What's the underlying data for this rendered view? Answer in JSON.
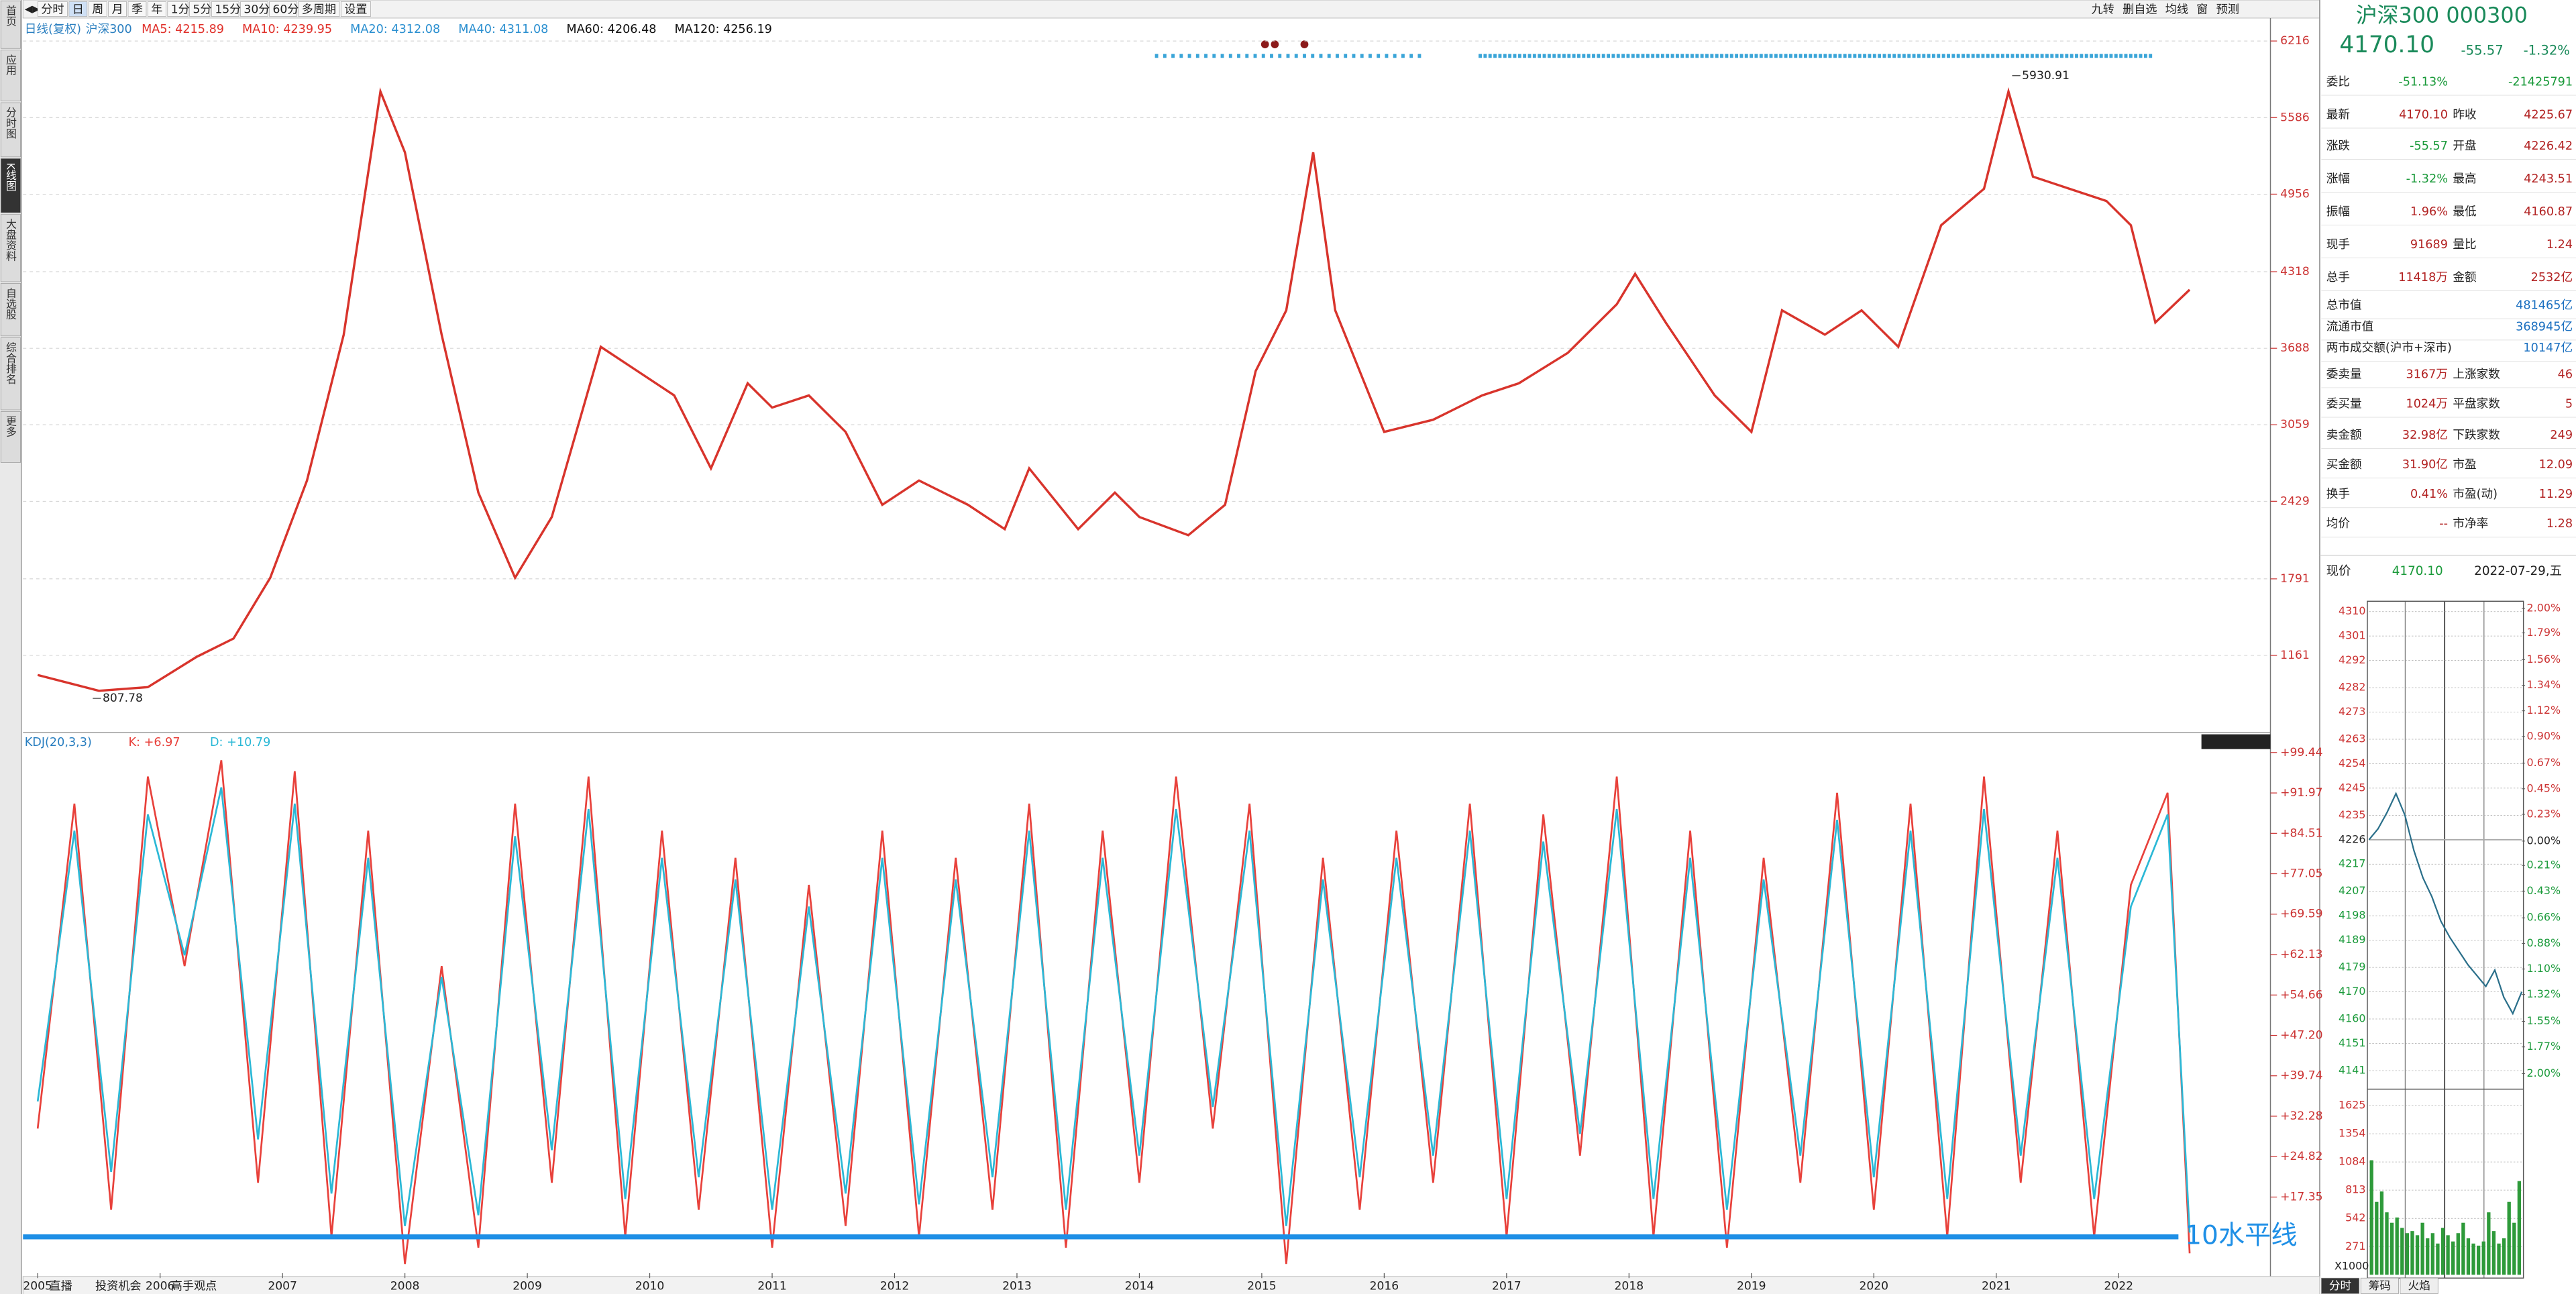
{
  "toolbar": {
    "left": [
      "分时",
      "日",
      "周",
      "月",
      "季",
      "年",
      "1分",
      "5分",
      "15分",
      "30分",
      "60分",
      "多周期",
      "设置"
    ],
    "right": [
      "九转",
      "删自选",
      "均线",
      "窗",
      "预测"
    ]
  },
  "sidebar": [
    "首页",
    "应用",
    "分时图",
    "K线图",
    "大盘资料",
    "自选股",
    "综合排名",
    "更多"
  ],
  "footer": [
    "直播",
    "投资机会",
    "高手观点"
  ],
  "chart_data": [
    {
      "type": "line",
      "title": "日线(复权)",
      "indicators": [
        {
          "label": "MA5: 4215.89",
          "color": "#e0302a"
        },
        {
          "label": "MA10: 4239.95",
          "color": "#e0302a"
        },
        {
          "label": "MA20: 4312.08",
          "color": "#2a8fd0"
        },
        {
          "label": "MA40: 4311.08",
          "color": "#2a8fd0"
        },
        {
          "label": "MA60: 4206.48",
          "color": "#111111"
        },
        {
          "label": "MA120: 4256.19",
          "color": "#111111"
        }
      ],
      "x": [
        2005.0,
        2005.5,
        2005.9,
        2006.3,
        2006.6,
        2006.9,
        2007.2,
        2007.5,
        2007.8,
        2008.0,
        2008.3,
        2008.6,
        2008.9,
        2009.2,
        2009.6,
        2009.9,
        2010.2,
        2010.5,
        2010.8,
        2011.0,
        2011.3,
        2011.6,
        2011.9,
        2012.2,
        2012.6,
        2012.9,
        2013.1,
        2013.5,
        2013.8,
        2014.0,
        2014.4,
        2014.7,
        2014.95,
        2015.2,
        2015.42,
        2015.6,
        2015.8,
        2016.0,
        2016.4,
        2016.8,
        2017.1,
        2017.5,
        2017.9,
        2018.05,
        2018.3,
        2018.7,
        2019.0,
        2019.25,
        2019.6,
        2019.9,
        2020.2,
        2020.55,
        2020.9,
        2021.1,
        2021.3,
        2021.6,
        2021.9,
        2022.1,
        2022.3,
        2022.58
      ],
      "series": [
        {
          "name": "沪深300",
          "color": "#d8342c",
          "values": [
            1000,
            870,
            900,
            1150,
            1300,
            1800,
            2600,
            3800,
            5800,
            5300,
            3800,
            2500,
            1800,
            2300,
            3700,
            3500,
            3300,
            2700,
            3400,
            3200,
            3300,
            3000,
            2400,
            2600,
            2400,
            2200,
            2700,
            2200,
            2500,
            2300,
            2150,
            2400,
            3500,
            4000,
            5300,
            4000,
            3500,
            3000,
            3100,
            3300,
            3400,
            3650,
            4050,
            4300,
            3900,
            3300,
            3000,
            4000,
            3800,
            4000,
            3700,
            4700,
            5000,
            5800,
            5100,
            5000,
            4900,
            4700,
            3900,
            4170
          ]
        }
      ],
      "annotations": [
        {
          "label": "5930.91",
          "x": 2021.13,
          "y": 5930.91
        },
        {
          "label": "807.78",
          "x": 2005.45,
          "y": 807.78
        }
      ],
      "xlim": [
        2004.88,
        2023.24
      ],
      "ylim": [
        539,
        6256
      ],
      "yticks": [
        6216,
        5586,
        4956,
        4318,
        3688,
        3059,
        2429,
        1791,
        1161
      ],
      "grid": true
    },
    {
      "type": "line",
      "title": "KDJ(20,3,3)",
      "x": [
        2005.0,
        2005.3,
        2005.6,
        2005.9,
        2006.2,
        2006.5,
        2006.8,
        2007.1,
        2007.4,
        2007.7,
        2008.0,
        2008.3,
        2008.6,
        2008.9,
        2009.2,
        2009.5,
        2009.8,
        2010.1,
        2010.4,
        2010.7,
        2011.0,
        2011.3,
        2011.6,
        2011.9,
        2012.2,
        2012.5,
        2012.8,
        2013.1,
        2013.4,
        2013.7,
        2014.0,
        2014.3,
        2014.6,
        2014.9,
        2015.2,
        2015.5,
        2015.8,
        2016.1,
        2016.4,
        2016.7,
        2017.0,
        2017.3,
        2017.6,
        2017.9,
        2018.2,
        2018.5,
        2018.8,
        2019.1,
        2019.4,
        2019.7,
        2020.0,
        2020.3,
        2020.6,
        2020.9,
        2021.2,
        2021.5,
        2021.8,
        2022.1,
        2022.4,
        2022.58
      ],
      "series": [
        {
          "name": "K: +6.97",
          "color": "#e8413b",
          "values": [
            30,
            90,
            15,
            95,
            60,
            98,
            20,
            96,
            10,
            85,
            5,
            60,
            8,
            90,
            20,
            95,
            10,
            85,
            15,
            80,
            8,
            75,
            12,
            85,
            10,
            80,
            15,
            90,
            8,
            85,
            20,
            95,
            30,
            90,
            5,
            80,
            15,
            85,
            20,
            90,
            10,
            88,
            25,
            95,
            10,
            85,
            8,
            80,
            20,
            92,
            15,
            90,
            10,
            95,
            20,
            85,
            10,
            75,
            92,
            6.97
          ]
        },
        {
          "name": "D: +10.79",
          "color": "#2bb8d6",
          "values": [
            35,
            85,
            22,
            88,
            62,
            93,
            28,
            90,
            18,
            80,
            12,
            58,
            14,
            84,
            26,
            89,
            17,
            80,
            21,
            76,
            15,
            71,
            18,
            80,
            16,
            76,
            21,
            85,
            15,
            80,
            25,
            89,
            34,
            85,
            12,
            76,
            21,
            80,
            25,
            85,
            17,
            83,
            29,
            89,
            17,
            80,
            15,
            76,
            25,
            87,
            21,
            85,
            17,
            89,
            25,
            80,
            17,
            71,
            88,
            10.79
          ]
        }
      ],
      "reference_line": {
        "value": 10,
        "label": "10水平线",
        "color": "#1e8fe6"
      },
      "xlim": [
        2004.88,
        2023.24
      ],
      "ylim": [
        3.3,
        102.8
      ],
      "yticks": [
        {
          "value": 99.44,
          "label": "+99.44"
        },
        {
          "value": 91.97,
          "label": "+91.97"
        },
        {
          "value": 84.51,
          "label": "+84.51"
        },
        {
          "value": 77.05,
          "label": "+77.05"
        },
        {
          "value": 69.59,
          "label": "+69.59"
        },
        {
          "value": 62.13,
          "label": "+62.13"
        },
        {
          "value": 54.66,
          "label": "+54.66"
        },
        {
          "value": 47.2,
          "label": "+47.20"
        },
        {
          "value": 39.74,
          "label": "+39.74"
        },
        {
          "value": 32.28,
          "label": "+32.28"
        },
        {
          "value": 24.82,
          "label": "+24.82"
        },
        {
          "value": 17.35,
          "label": "+17.35"
        }
      ],
      "xticks": [
        2005,
        2006,
        2007,
        2008,
        2009,
        2010,
        2011,
        2012,
        2013,
        2014,
        2015,
        2016,
        2017,
        2018,
        2019,
        2020,
        2021,
        2022
      ]
    },
    {
      "type": "line",
      "color": "#2a6f8a",
      "values": [
        4226,
        4230,
        4236,
        4243,
        4235,
        4222,
        4212,
        4205,
        4196,
        4190,
        4185,
        4180,
        4176,
        4172,
        4178,
        4168,
        4162,
        4170
      ],
      "ylim": [
        4139,
        4312
      ],
      "yticks": [
        4310,
        4301,
        4292,
        4282,
        4273,
        4263,
        4254,
        4245,
        4235,
        4226,
        4217,
        4207,
        4198,
        4189,
        4179,
        4170,
        4160,
        4151,
        4141
      ],
      "y2lim": [
        -2.02,
        2.02
      ],
      "y2ticks": [
        {
          "value": 2.0,
          "label": "2.00%"
        },
        {
          "value": 1.79,
          "label": "1.79%"
        },
        {
          "value": 1.56,
          "label": "1.56%"
        },
        {
          "value": 1.34,
          "label": "1.34%"
        },
        {
          "value": 1.12,
          "label": "1.12%"
        },
        {
          "value": 0.9,
          "label": "0.90%"
        },
        {
          "value": 0.67,
          "label": "0.67%"
        },
        {
          "value": 0.45,
          "label": "0.45%"
        },
        {
          "value": 0.23,
          "label": "0.23%"
        },
        {
          "value": 0,
          "label": "0.00%"
        },
        {
          "value": -0.21,
          "label": "0.21%"
        },
        {
          "value": -0.43,
          "label": "0.43%"
        },
        {
          "value": -0.66,
          "label": "0.66%"
        },
        {
          "value": -0.88,
          "label": "0.88%"
        },
        {
          "value": -1.1,
          "label": "1.10%"
        },
        {
          "value": -1.32,
          "label": "1.32%"
        },
        {
          "value": -1.55,
          "label": "1.55%"
        },
        {
          "value": -1.77,
          "label": "1.77%"
        },
        {
          "value": -2.0,
          "label": "2.00%"
        }
      ]
    },
    {
      "type": "bar",
      "color": "#2e9a3a",
      "unit": "X1000",
      "values": [
        1100,
        700,
        800,
        600,
        500,
        550,
        450,
        400,
        420,
        380,
        500,
        350,
        400,
        300,
        450,
        380,
        320,
        400,
        500,
        350,
        300,
        280,
        320,
        600,
        420,
        300,
        350,
        700,
        500,
        900
      ],
      "ylim": [
        0,
        1767
      ],
      "yticks": [
        1625,
        1354,
        1084,
        813,
        542,
        271
      ]
    }
  ],
  "quote": {
    "name": "沪深300 000300",
    "price": "4170.10",
    "change": "-55.57",
    "pct": "-1.32%",
    "rows": [
      [
        "委比",
        "-51.13%",
        "-21425791"
      ],
      [
        "最新",
        "4170.10",
        "昨收",
        "4225.67"
      ],
      [
        "涨跌",
        "-55.57",
        "开盘",
        "4226.42"
      ],
      [
        "涨幅",
        "-1.32%",
        "最高",
        "4243.51"
      ],
      [
        "振幅",
        "1.96%",
        "最低",
        "4160.87"
      ],
      [
        "现手",
        "91689",
        "量比",
        "1.24"
      ],
      [
        "总手",
        "11418万",
        "金额",
        "2532亿"
      ],
      [
        "总市值",
        "481465亿"
      ],
      [
        "流通市值",
        "368945亿"
      ],
      [
        "两市成交额(沪市+深市)",
        "10147亿"
      ],
      [
        "委卖量",
        "3167万",
        "上涨家数",
        "46"
      ],
      [
        "委买量",
        "1024万",
        "平盘家数",
        "5"
      ],
      [
        "卖金额",
        "32.98亿",
        "下跌家数",
        "249"
      ],
      [
        "买金额",
        "31.90亿",
        "市盈",
        "12.09"
      ],
      [
        "换手",
        "0.41%",
        "市盈(动)",
        "11.29"
      ],
      [
        "均价",
        "--",
        "市净率",
        "1.28"
      ]
    ],
    "now": {
      "label": "现价",
      "price": "4170.10",
      "date": "2022-07-29,五"
    }
  },
  "tabs": [
    "分时",
    "筹码",
    "火焰"
  ]
}
